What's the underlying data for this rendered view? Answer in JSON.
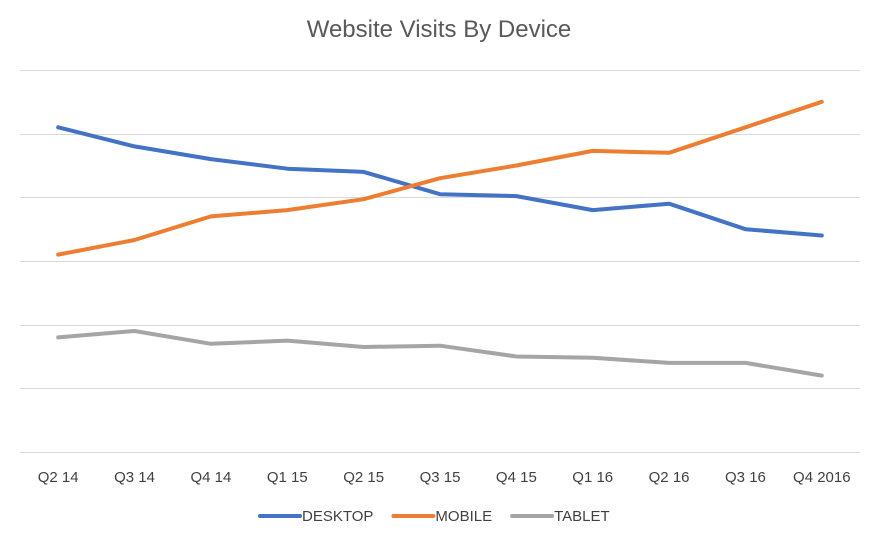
{
  "chart_data": {
    "type": "line",
    "title": "Website Visits By Device",
    "xlabel": "",
    "ylabel": "",
    "categories": [
      "Q2 14",
      "Q3 14",
      "Q4 14",
      "Q1 15",
      "Q2 15",
      "Q3 15",
      "Q4 15",
      "Q1 16",
      "Q2 16",
      "Q3 16",
      "Q4 2016"
    ],
    "ylim": [
      0,
      6
    ],
    "grid": true,
    "legend": "bottom",
    "series": [
      {
        "name": "DESKTOP",
        "color": "#4472C4",
        "values": [
          5.1,
          4.8,
          4.6,
          4.45,
          4.4,
          4.05,
          4.02,
          3.8,
          3.9,
          3.5,
          3.4
        ]
      },
      {
        "name": "MOBILE",
        "color": "#ED7D31",
        "values": [
          3.1,
          3.33,
          3.7,
          3.8,
          3.97,
          4.3,
          4.5,
          4.73,
          4.7,
          5.1,
          5.5
        ]
      },
      {
        "name": "TABLET",
        "color": "#A5A5A5",
        "values": [
          1.8,
          1.9,
          1.7,
          1.75,
          1.65,
          1.67,
          1.5,
          1.48,
          1.4,
          1.4,
          1.2
        ]
      }
    ]
  }
}
